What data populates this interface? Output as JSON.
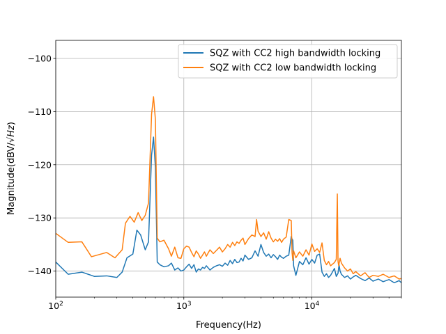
{
  "chart_data": {
    "type": "line",
    "title": "",
    "xlabel": "Frequency(Hz)",
    "ylabel": "Magnitude(dBV/√Hz)",
    "ylabel_base": "Magnitude(dBV/",
    "ylabel_radicand": "Hz",
    "ylabel_end": ")",
    "xscale": "log",
    "xlim": [
      100,
      50000
    ],
    "ylim": [
      -144.9,
      -96.6
    ],
    "grid": true,
    "legend_position": "upper right",
    "x_ticks": [
      {
        "value": 100,
        "base": "10",
        "exp": "2"
      },
      {
        "value": 1000,
        "base": "10",
        "exp": "3"
      },
      {
        "value": 10000,
        "base": "10",
        "exp": "4"
      }
    ],
    "y_ticks": [
      {
        "value": -100,
        "label": "−100"
      },
      {
        "value": -110,
        "label": "−110"
      },
      {
        "value": -120,
        "label": "−120"
      },
      {
        "value": -130,
        "label": "−130"
      },
      {
        "value": -140,
        "label": "−140"
      }
    ],
    "series": [
      {
        "name": "SQZ with CC2 high bandwidth locking",
        "color": "#1f77b4",
        "x": [
          100,
          125,
          160,
          200,
          250,
          300,
          330,
          360,
          400,
          430,
          460,
          500,
          530,
          560,
          580,
          600,
          620,
          650,
          700,
          760,
          800,
          850,
          900,
          950,
          1000,
          1050,
          1100,
          1150,
          1200,
          1250,
          1300,
          1350,
          1400,
          1450,
          1500,
          1600,
          1700,
          1800,
          1900,
          2000,
          2100,
          2200,
          2300,
          2400,
          2500,
          2600,
          2700,
          2800,
          2900,
          3000,
          3200,
          3400,
          3600,
          3800,
          4000,
          4200,
          4400,
          4600,
          4800,
          5000,
          5200,
          5400,
          5600,
          5800,
          6000,
          6300,
          6600,
          6900,
          7000,
          7100,
          7200,
          7500,
          8000,
          8500,
          9000,
          9500,
          10000,
          10500,
          11000,
          11500,
          12000,
          12500,
          13000,
          13500,
          14000,
          15000,
          15500,
          16000,
          16300,
          16600,
          17000,
          18000,
          19000,
          20000,
          21000,
          22000,
          24000,
          26000,
          28000,
          30000,
          33000,
          36000,
          40000,
          44000,
          48000,
          50000
        ],
        "y": [
          -138.3,
          -140.6,
          -140.2,
          -141.0,
          -140.9,
          -141.2,
          -140.2,
          -137.5,
          -136.8,
          -132.3,
          -133.2,
          -136.0,
          -134.5,
          -118.2,
          -114.8,
          -120.5,
          -138.3,
          -138.8,
          -139.2,
          -139.0,
          -138.5,
          -139.8,
          -139.4,
          -140.0,
          -139.8,
          -139.2,
          -138.7,
          -139.5,
          -138.8,
          -140.2,
          -139.6,
          -139.8,
          -139.3,
          -139.5,
          -139.0,
          -139.8,
          -139.3,
          -139.0,
          -138.8,
          -139.1,
          -138.5,
          -138.9,
          -138.0,
          -138.6,
          -137.8,
          -138.4,
          -138.3,
          -137.6,
          -138.1,
          -137.0,
          -137.8,
          -137.5,
          -136.2,
          -137.2,
          -135.0,
          -136.5,
          -137.2,
          -136.8,
          -137.5,
          -136.9,
          -137.3,
          -137.8,
          -137.0,
          -137.4,
          -137.6,
          -137.2,
          -137.0,
          -133.5,
          -134.0,
          -134.2,
          -139.0,
          -140.8,
          -138.2,
          -138.8,
          -137.5,
          -138.7,
          -137.8,
          -138.5,
          -137.0,
          -136.8,
          -140.2,
          -141.0,
          -140.5,
          -141.2,
          -140.8,
          -139.5,
          -141.0,
          -140.4,
          -138.8,
          -140.0,
          -140.6,
          -141.2,
          -140.9,
          -141.5,
          -141.1,
          -140.8,
          -141.4,
          -141.8,
          -141.3,
          -141.9,
          -141.5,
          -142.0,
          -141.6,
          -142.2,
          -141.8,
          -142.2
        ]
      },
      {
        "name": "SQZ with CC2 low bandwidth locking",
        "color": "#ff7f0e",
        "x": [
          100,
          125,
          160,
          190,
          250,
          290,
          330,
          350,
          380,
          410,
          440,
          470,
          500,
          530,
          560,
          580,
          600,
          620,
          650,
          700,
          760,
          800,
          850,
          900,
          950,
          1000,
          1050,
          1100,
          1150,
          1200,
          1250,
          1300,
          1350,
          1400,
          1450,
          1500,
          1600,
          1700,
          1800,
          1900,
          2000,
          2100,
          2200,
          2300,
          2400,
          2500,
          2600,
          2700,
          2800,
          2900,
          3000,
          3200,
          3400,
          3600,
          3700,
          3800,
          4000,
          4200,
          4400,
          4600,
          4800,
          5000,
          5200,
          5400,
          5600,
          5800,
          6000,
          6300,
          6600,
          6900,
          7000,
          7100,
          7200,
          7500,
          8000,
          8500,
          9000,
          9500,
          10000,
          10500,
          11000,
          11500,
          12000,
          12500,
          13000,
          13500,
          14000,
          15000,
          15500,
          15800,
          16000,
          16200,
          16600,
          17000,
          18000,
          19000,
          20000,
          21000,
          22000,
          24000,
          26000,
          28000,
          30000,
          33000,
          36000,
          40000,
          44000,
          48000,
          50000
        ],
        "y": [
          -132.9,
          -134.6,
          -134.5,
          -137.3,
          -136.5,
          -137.5,
          -136.0,
          -131.0,
          -129.7,
          -130.8,
          -129.0,
          -130.5,
          -129.5,
          -127.2,
          -110.5,
          -107.2,
          -111.5,
          -133.8,
          -134.5,
          -134.2,
          -135.8,
          -137.2,
          -135.5,
          -137.5,
          -137.6,
          -135.8,
          -135.3,
          -135.5,
          -136.5,
          -137.3,
          -136.2,
          -136.8,
          -137.6,
          -137.0,
          -136.4,
          -137.2,
          -136.0,
          -136.7,
          -136.1,
          -135.5,
          -136.4,
          -135.8,
          -135.0,
          -135.5,
          -134.6,
          -135.2,
          -134.5,
          -134.8,
          -134.2,
          -133.8,
          -135.0,
          -133.9,
          -133.2,
          -133.5,
          -130.3,
          -132.5,
          -133.5,
          -132.8,
          -134.0,
          -132.6,
          -133.8,
          -134.5,
          -134.0,
          -134.4,
          -133.9,
          -134.6,
          -134.0,
          -133.6,
          -130.3,
          -130.5,
          -136.5,
          -138.0,
          -136.2,
          -137.5,
          -136.4,
          -137.2,
          -136.0,
          -137.0,
          -134.9,
          -136.3,
          -135.8,
          -136.5,
          -134.7,
          -138.0,
          -138.8,
          -138.2,
          -139.0,
          -138.4,
          -137.8,
          -125.5,
          -138.2,
          -139.0,
          -137.6,
          -138.5,
          -139.4,
          -140.0,
          -139.6,
          -140.5,
          -140.1,
          -140.9,
          -140.3,
          -141.2,
          -140.8,
          -141.0,
          -140.6,
          -141.2,
          -140.9,
          -141.5,
          -141.4
        ]
      }
    ]
  }
}
